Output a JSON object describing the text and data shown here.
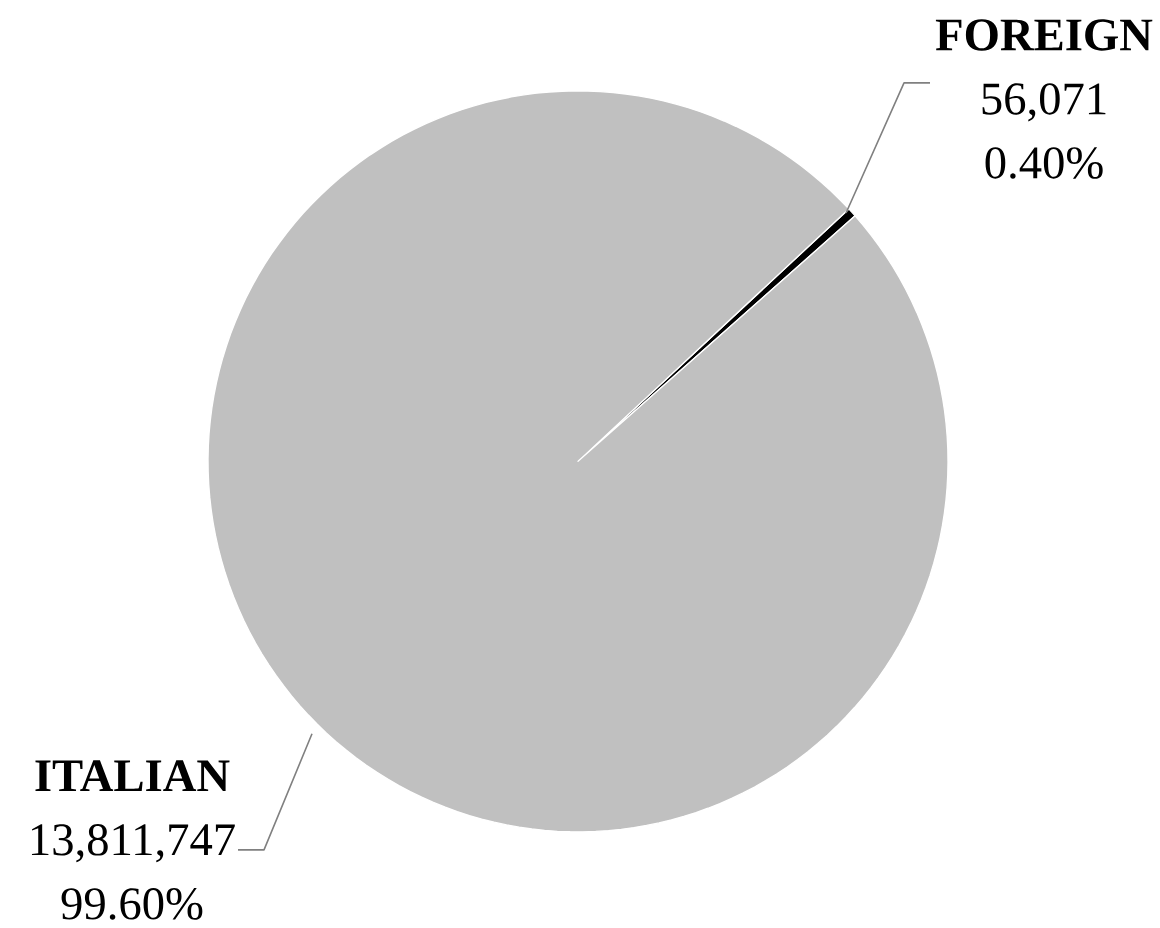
{
  "chart_data": {
    "type": "pie",
    "categories": [
      "ITALIAN",
      "FOREIGN"
    ],
    "values": [
      13811747,
      56071
    ],
    "colors": [
      "#c0c0c0",
      "#000000"
    ],
    "value_labels": [
      "13,811,747",
      "56,071"
    ],
    "annotations": [
      "99.60%",
      "0.40%"
    ]
  }
}
